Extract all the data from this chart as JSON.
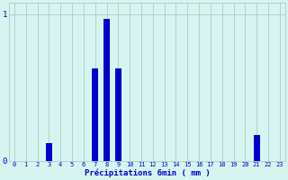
{
  "categories": [
    0,
    1,
    2,
    3,
    4,
    5,
    6,
    7,
    8,
    9,
    10,
    11,
    12,
    13,
    14,
    15,
    16,
    17,
    18,
    19,
    20,
    21,
    22,
    23
  ],
  "values": [
    0,
    0,
    0,
    0.12,
    0,
    0,
    0,
    0.63,
    0.97,
    0.63,
    0,
    0,
    0,
    0,
    0,
    0,
    0,
    0,
    0,
    0,
    0,
    0.18,
    0,
    0
  ],
  "bar_color": "#0000cc",
  "background_color": "#d6f5f0",
  "grid_color": "#b0c8c8",
  "ylim": [
    0,
    1.08
  ],
  "yticks": [
    0,
    1
  ],
  "xlabel": "Précipitations 6min ( mm )",
  "xlabel_color": "#0000cc",
  "tick_color": "#0000cc",
  "bar_width": 0.55
}
